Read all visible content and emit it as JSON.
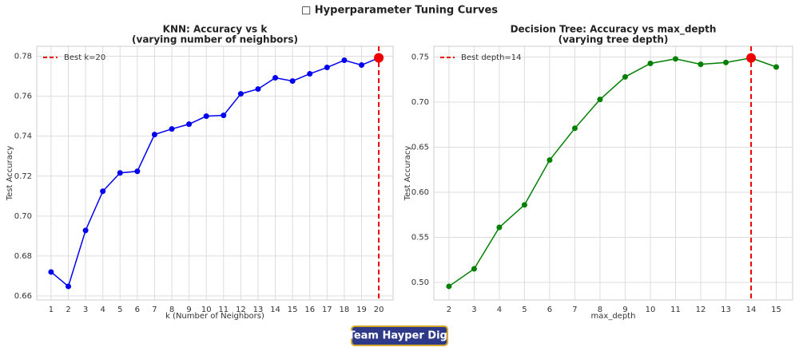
{
  "title": "□ Hyperparameter Tuning Curves",
  "footer": "Team Hayper Digi",
  "chart_data": [
    {
      "type": "line",
      "title": "KNN: Accuracy vs k",
      "subtitle": "(varying number of neighbors)",
      "xlabel": "k (Number of Neighbors)",
      "ylabel": "Test Accuracy",
      "x": [
        1,
        2,
        3,
        4,
        5,
        6,
        7,
        8,
        9,
        10,
        11,
        12,
        13,
        14,
        15,
        16,
        17,
        18,
        19,
        20
      ],
      "values": [
        0.672,
        0.6648,
        0.6928,
        0.7124,
        0.7216,
        0.7224,
        0.7408,
        0.7436,
        0.746,
        0.75,
        0.7504,
        0.7612,
        0.7636,
        0.7692,
        0.7676,
        0.7712,
        0.7744,
        0.778,
        0.7756,
        0.7792
      ],
      "color": "#0000ee",
      "best": {
        "label": "Best k=20",
        "x": 20,
        "y": 0.7792,
        "color": "#ee0000"
      },
      "xlim": [
        0.17,
        20.83
      ],
      "ylim": [
        0.658,
        0.785
      ],
      "xticks": [
        1,
        2,
        3,
        4,
        5,
        6,
        7,
        8,
        9,
        10,
        11,
        12,
        13,
        14,
        15,
        16,
        17,
        18,
        19,
        20
      ],
      "yticks": [
        0.66,
        0.68,
        {
          "value": 0.7,
          "label": "0.70"
        },
        0.72,
        0.74,
        0.76,
        0.78
      ],
      "grid": true,
      "legend": "upper left"
    },
    {
      "type": "line",
      "title": "Decision Tree: Accuracy vs max_depth",
      "subtitle": "(varying tree depth)",
      "xlabel": "max_depth",
      "ylabel": "Test Accuracy",
      "x": [
        2,
        3,
        4,
        5,
        6,
        7,
        8,
        9,
        10,
        11,
        12,
        13,
        14,
        15
      ],
      "values": [
        0.4956,
        0.515,
        0.561,
        0.586,
        0.6357,
        0.671,
        0.703,
        0.728,
        0.743,
        0.748,
        0.742,
        0.744,
        0.749,
        0.739
      ],
      "color": "#008000",
      "best": {
        "label": "Best depth=14",
        "x": 14,
        "y": 0.749,
        "color": "#ee0000"
      },
      "xlim": [
        1.4,
        15.65
      ],
      "ylim": [
        0.4805,
        0.762
      ],
      "xticks": [
        2,
        3,
        4,
        5,
        6,
        7,
        8,
        9,
        10,
        11,
        12,
        13,
        14,
        15
      ],
      "yticks": [
        {
          "value": 0.5,
          "label": "0.50"
        },
        0.55,
        {
          "value": 0.6,
          "label": "0.60"
        },
        0.65,
        {
          "value": 0.7,
          "label": "0.70"
        },
        0.75
      ],
      "grid": true,
      "legend": "upper left"
    }
  ]
}
